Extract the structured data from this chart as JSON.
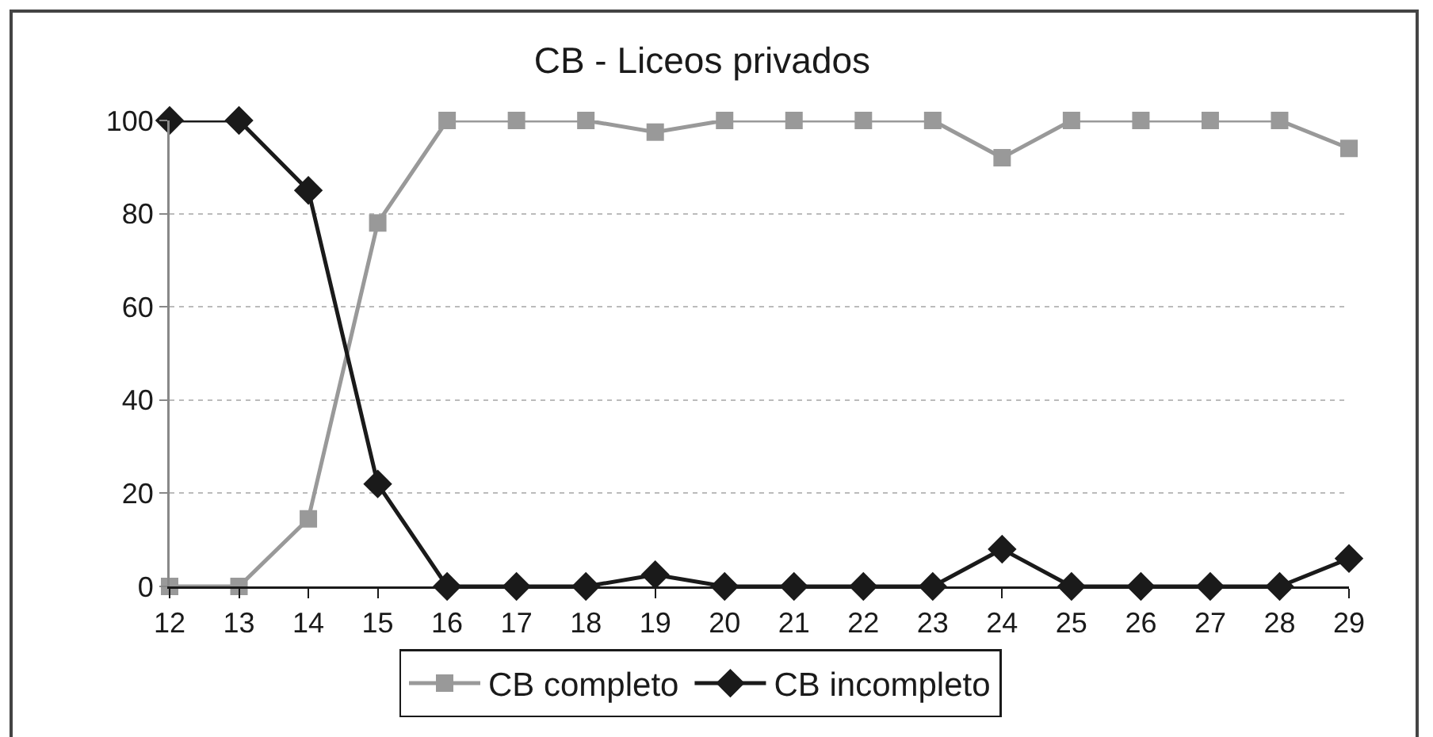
{
  "chart_data": {
    "type": "line",
    "title": "CB - Liceos privados",
    "categories": [
      "12",
      "13",
      "14",
      "15",
      "16",
      "17",
      "18",
      "19",
      "20",
      "21",
      "22",
      "23",
      "24",
      "25",
      "26",
      "27",
      "28",
      "29"
    ],
    "series": [
      {
        "name": "CB completo",
        "color": "#999999",
        "marker": "square",
        "values": [
          0,
          0,
          14.5,
          78,
          100,
          100,
          100,
          97.5,
          100,
          100,
          100,
          100,
          92,
          100,
          100,
          100,
          100,
          94
        ]
      },
      {
        "name": "CB incompleto",
        "color": "#1a1a1a",
        "marker": "diamond",
        "values": [
          100,
          100,
          85,
          22,
          0,
          0,
          0,
          2.5,
          0,
          0,
          0,
          0,
          8,
          0,
          0,
          0,
          0,
          6
        ]
      }
    ],
    "ylim": [
      0,
      100
    ],
    "yticks": [
      0,
      20,
      40,
      60,
      80,
      100
    ],
    "grid": "y",
    "legend": "bottom",
    "line_style": "solid"
  }
}
